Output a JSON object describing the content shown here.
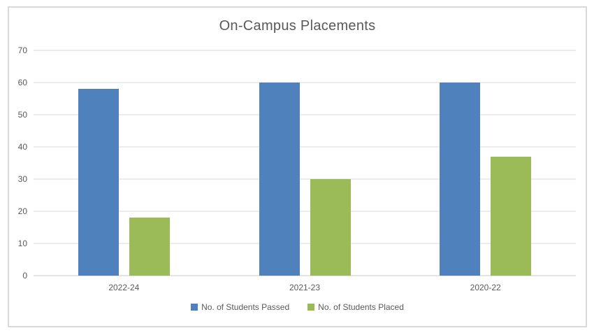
{
  "chart_data": {
    "type": "bar",
    "title": "On-Campus Placements",
    "categories": [
      "2022-24",
      "2021-23",
      "2020-22"
    ],
    "series": [
      {
        "name": "No. of Students Passed",
        "color": "#4f81bd",
        "values": [
          58,
          60,
          60
        ]
      },
      {
        "name": "No. of Students Placed",
        "color": "#9bbb59",
        "values": [
          18,
          30,
          37
        ]
      }
    ],
    "xlabel": "",
    "ylabel": "",
    "ylim": [
      0,
      70
    ],
    "yticks": [
      0,
      10,
      20,
      30,
      40,
      50,
      60,
      70
    ],
    "grid": "horizontal",
    "legend_position": "bottom"
  },
  "colors": {
    "series_passed": "#4f81bd",
    "series_placed": "#9bbb59",
    "gridline": "#d9d9d9",
    "zero_line": "#c9c9c9",
    "frame_border": "#d9d9d9",
    "axis_text": "#595959",
    "title_text": "#595959",
    "background": "#ffffff"
  }
}
